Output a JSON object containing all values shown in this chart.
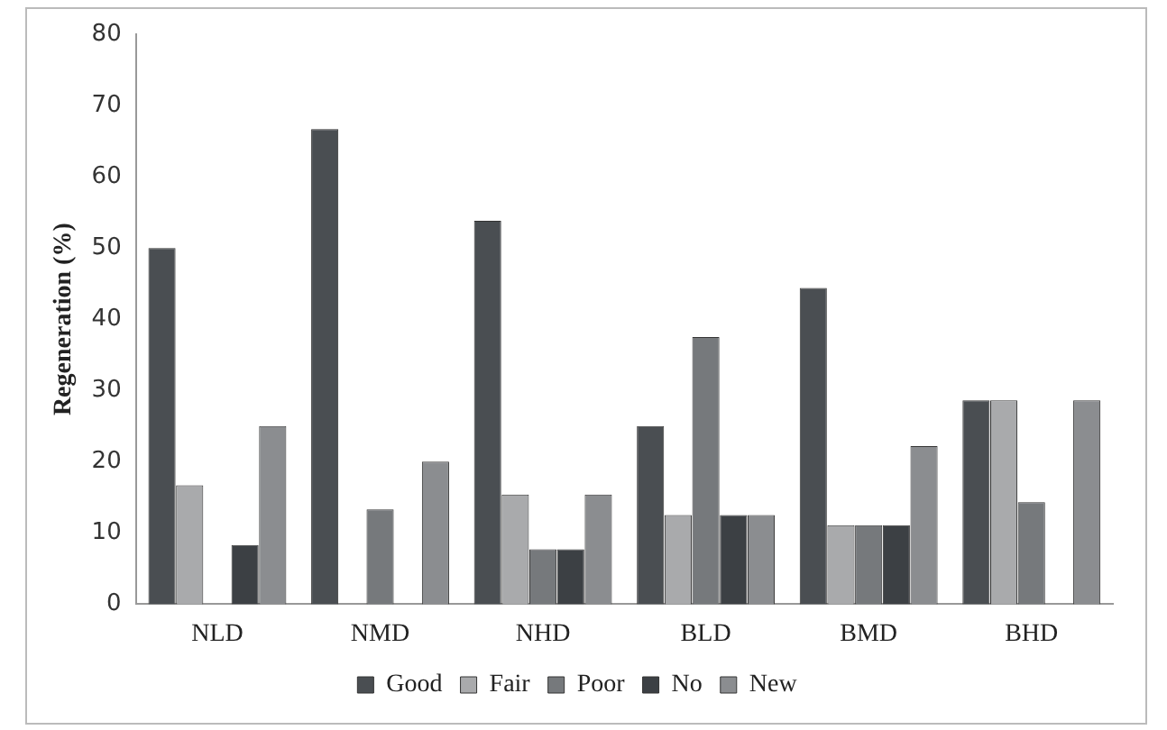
{
  "chart_data": {
    "type": "bar",
    "ylabel": "Regeneration (%)",
    "categories": [
      "NLD",
      "NMD",
      "NHD",
      "BLD",
      "BMD",
      "BHD"
    ],
    "series": [
      {
        "name": "Good",
        "color": "#4a4e52",
        "values": [
          50,
          66.7,
          53.8,
          25,
          44.4,
          28.6
        ]
      },
      {
        "name": "Fair",
        "color": "#a9aaac",
        "values": [
          16.7,
          0,
          15.4,
          12.5,
          11.1,
          28.6
        ]
      },
      {
        "name": "Poor",
        "color": "#76797c",
        "values": [
          0,
          13.3,
          7.7,
          37.5,
          11.1,
          14.3
        ]
      },
      {
        "name": "No",
        "color": "#3c4044",
        "values": [
          8.3,
          0,
          7.7,
          12.5,
          11.1,
          0
        ]
      },
      {
        "name": "New",
        "color": "#8b8d90",
        "values": [
          25,
          20,
          15.4,
          12.5,
          22.2,
          28.6
        ]
      }
    ],
    "ylim": [
      0,
      80
    ],
    "yticks": [
      0,
      10,
      20,
      30,
      40,
      50,
      60,
      70,
      80
    ],
    "grid": false,
    "legend": "bottom"
  }
}
